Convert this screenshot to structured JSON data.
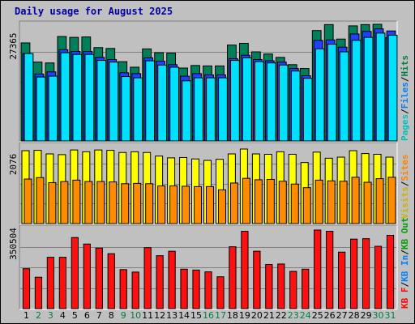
{
  "title": "Daily usage for August 2025",
  "chart_data": [
    {
      "panel": "visits-requests",
      "type": "bar",
      "max_label": "27365",
      "legend": [
        {
          "name": "Pages",
          "color": "#00c0c0"
        },
        {
          "name": "/",
          "color": "#000000"
        },
        {
          "name": "Files",
          "color": "#0080ff"
        },
        {
          "name": "/",
          "color": "#000000"
        },
        {
          "name": "Hits",
          "color": "#008040"
        }
      ],
      "series": [
        {
          "name": "Hits",
          "color": "#00805a",
          "values": [
            23000,
            18500,
            18300,
            24500,
            24300,
            24400,
            21900,
            21700,
            18600,
            17300,
            21600,
            20700,
            20600,
            17100,
            17700,
            17600,
            17600,
            22500,
            22900,
            20900,
            20400,
            19600,
            17900,
            17000,
            25900,
            27300,
            23900,
            27000,
            27300,
            27365,
            24200
          ]
        },
        {
          "name": "Files",
          "color": "#2040ff",
          "values": [
            20500,
            15700,
            16200,
            21400,
            21000,
            21000,
            19600,
            19100,
            16000,
            15800,
            19500,
            18700,
            17900,
            15200,
            15800,
            15500,
            15500,
            19300,
            20100,
            19100,
            18800,
            18500,
            17000,
            15300,
            23600,
            23700,
            22000,
            25100,
            25700,
            26300,
            25800
          ]
        },
        {
          "name": "Pages",
          "color": "#00e0ff",
          "values": [
            20500,
            15000,
            15200,
            20700,
            20300,
            20300,
            18900,
            18500,
            15100,
            14800,
            18800,
            17800,
            17300,
            14100,
            14800,
            14800,
            14800,
            18900,
            19500,
            18600,
            18300,
            17800,
            16400,
            14700,
            21600,
            22700,
            20900,
            23600,
            24300,
            25300,
            24800
          ]
        }
      ]
    },
    {
      "panel": "visits-sites",
      "type": "bar",
      "max_label": "2076",
      "legend": [
        {
          "name": "Visits",
          "color": "#d0b000"
        },
        {
          "name": "/",
          "color": "#000000"
        },
        {
          "name": "Sites",
          "color": "#ff8000"
        }
      ],
      "series": [
        {
          "name": "Visits",
          "color": "#ffff00",
          "values": [
            2030,
            2040,
            1940,
            1920,
            2050,
            2000,
            2050,
            2040,
            1980,
            2000,
            1980,
            1880,
            1830,
            1840,
            1800,
            1760,
            1790,
            1940,
            2076,
            1940,
            1930,
            2000,
            1930,
            1700,
            1990,
            1820,
            1850,
            2030,
            1950,
            1930,
            1850
          ]
        },
        {
          "name": "Sites",
          "color": "#ff8c00",
          "values": [
            1240,
            1280,
            1140,
            1170,
            1210,
            1170,
            1170,
            1160,
            1110,
            1120,
            1110,
            1050,
            1050,
            1040,
            1030,
            1030,
            940,
            1130,
            1260,
            1220,
            1230,
            1180,
            1100,
            1000,
            1210,
            1190,
            1180,
            1290,
            1150,
            1250,
            1290
          ]
        }
      ]
    },
    {
      "panel": "kbytes",
      "type": "bar",
      "max_label": "350504",
      "legend": [
        {
          "name": "KB F",
          "color": "#ff0000"
        },
        {
          "name": "/",
          "color": "#000000"
        },
        {
          "name": "KB In",
          "color": "#0080ff"
        },
        {
          "name": "/",
          "color": "#000000"
        },
        {
          "name": "KB Out",
          "color": "#00a000"
        }
      ],
      "series": [
        {
          "name": "KB F",
          "color": "#ff1010",
          "values": [
            178000,
            140000,
            229000,
            229000,
            317000,
            288000,
            270000,
            245000,
            174000,
            163000,
            272000,
            236000,
            256000,
            176000,
            172000,
            164000,
            142000,
            276000,
            345000,
            256000,
            197000,
            199000,
            166000,
            176000,
            350504,
            345000,
            252000,
            310000,
            312000,
            278000,
            327000
          ]
        }
      ]
    }
  ],
  "x_axis": {
    "days": [
      1,
      2,
      3,
      4,
      5,
      6,
      7,
      8,
      9,
      10,
      11,
      12,
      13,
      14,
      15,
      16,
      17,
      18,
      19,
      20,
      21,
      22,
      23,
      24,
      25,
      26,
      27,
      28,
      29,
      30,
      31
    ],
    "weekend_days": [
      2,
      3,
      9,
      10,
      16,
      17,
      23,
      24,
      30,
      31
    ],
    "weekday_color": "#000000",
    "weekend_color": "#008040"
  }
}
